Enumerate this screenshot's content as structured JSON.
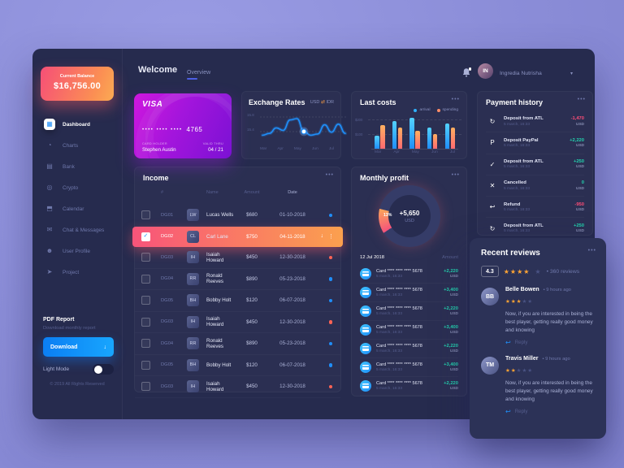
{
  "app": {
    "background": "#8b8dd8",
    "card_bg": "#262b4e",
    "accent_blue": "#1f8ef9",
    "green": "#23d3ae",
    "red": "#ff4d77",
    "orange": "#ffa534"
  },
  "sidebar": {
    "balance": {
      "label": "Current Balance",
      "value": "$16,756.00"
    },
    "items": [
      {
        "label": "Dashboard",
        "glyph": "▦",
        "state": "active"
      },
      {
        "label": "Charts",
        "glyph": "◔"
      },
      {
        "label": "Bank",
        "glyph": "▤"
      },
      {
        "label": "Crypto",
        "glyph": "◎"
      },
      {
        "label": "Calendar",
        "glyph": "⬒"
      },
      {
        "label": "Chat & Messages",
        "glyph": "✉"
      },
      {
        "label": "User Profile",
        "glyph": "☻"
      },
      {
        "label": "Project",
        "glyph": "➤"
      }
    ],
    "pdf": {
      "title": "PDF Report",
      "subtitle": "Download monthly report",
      "button": "Download",
      "button_icon": "↓"
    },
    "light_mode_label": "Light Mode",
    "copyright": "© 2019 All Rights Reserved"
  },
  "header": {
    "title": "Welcome",
    "tab": "Overview",
    "user": "Ingredia Nutrisha",
    "caret": "▾"
  },
  "visa": {
    "brand": "VISA",
    "dots": "••••  ••••  ••••",
    "last4": "4765",
    "holder_label": "CARD HOLDER",
    "holder": "Stephen Austin",
    "valid_label": "VALID THRU",
    "valid": "04 / 21"
  },
  "exchange": {
    "title": "Exchange Rates",
    "pair_left": "USD",
    "swap": "⇄",
    "pair_right": "IDR"
  },
  "costs": {
    "title": "Last costs",
    "menu": "•••"
  },
  "income": {
    "title": "Income",
    "menu": "•••",
    "columns": {
      "id": "#",
      "name": "Name",
      "amount": "Amount",
      "date": "Date"
    },
    "rows": [
      {
        "id": "DG01",
        "name": "Lucas Wells",
        "amount": "$680",
        "date": "01-10-2018",
        "dot": "blue"
      },
      {
        "id": "DG02",
        "name": "Carl Lane",
        "amount": "$750",
        "date": "04-11-2018",
        "state": "selected",
        "checked": true,
        "download_icon": "↓",
        "kebab_icon": "⋮"
      },
      {
        "id": "DG03",
        "name": "Isaiah Howard",
        "amount": "$450",
        "date": "12-30-2018",
        "dot": "orange"
      },
      {
        "id": "DG04",
        "name": "Ronald Reeves",
        "amount": "$890",
        "date": "05-23-2018",
        "dot": "blue"
      },
      {
        "id": "DG05",
        "name": "Bobby Holt",
        "amount": "$120",
        "date": "06-07-2018",
        "dot": "blue"
      },
      {
        "id": "DG03",
        "name": "Isaiah Howard",
        "amount": "$450",
        "date": "12-30-2018",
        "dot": "orange"
      },
      {
        "id": "DG04",
        "name": "Ronald Reeves",
        "amount": "$890",
        "date": "05-23-2018",
        "dot": "blue"
      },
      {
        "id": "DG05",
        "name": "Bobby Holt",
        "amount": "$120",
        "date": "06-07-2018",
        "dot": "blue"
      },
      {
        "id": "DG03",
        "name": "Isaiah Howard",
        "amount": "$450",
        "date": "12-30-2018",
        "dot": "orange"
      }
    ]
  },
  "monthly": {
    "title": "Monthly profit",
    "menu": "•••",
    "date": "12 Jul 2018",
    "amount_label": "Amount",
    "transactions": [
      {
        "title": "Card **** **** **** 5678",
        "time": "5 march, 16:33",
        "amount": "+2,220",
        "currency": "USD",
        "tone": "green"
      },
      {
        "title": "Card **** **** **** 5678",
        "time": "5 march, 16:33",
        "amount": "+3,400",
        "currency": "USD",
        "tone": "green"
      },
      {
        "title": "Card **** **** **** 5678",
        "time": "5 march, 16:33",
        "amount": "+2,220",
        "currency": "USD",
        "tone": "green"
      },
      {
        "title": "Card **** **** **** 5678",
        "time": "5 march, 16:33",
        "amount": "+3,400",
        "currency": "USD",
        "tone": "green"
      },
      {
        "title": "Card **** **** **** 5678",
        "time": "5 march, 16:33",
        "amount": "+2,220",
        "currency": "USD",
        "tone": "green"
      },
      {
        "title": "Card **** **** **** 5678",
        "time": "5 march, 16:33",
        "amount": "+3,400",
        "currency": "USD",
        "tone": "green"
      },
      {
        "title": "Card **** **** **** 5678",
        "time": "5 march, 16:33",
        "amount": "+2,220",
        "currency": "USD",
        "tone": "green"
      }
    ]
  },
  "payments": {
    "title": "Payment history",
    "menu": "•••",
    "items": [
      {
        "icon": "sync-icon",
        "glyph": "↻",
        "style": "ic-blue",
        "title": "Deposit from ATL",
        "time": "5 march, 16:33",
        "amount": "-1,470",
        "currency": "USD",
        "tone": "red"
      },
      {
        "icon": "paypal-icon",
        "glyph": "P",
        "style": "ic-purple",
        "title": "Deposit PayPal",
        "time": "5 march, 16:33",
        "amount": "+2,220",
        "currency": "USD",
        "tone": "green"
      },
      {
        "icon": "check-icon",
        "glyph": "✓",
        "style": "ic-violet",
        "title": "Deposit from ATL",
        "time": "5 march, 16:33",
        "amount": "+250",
        "currency": "USD",
        "tone": "green"
      },
      {
        "icon": "cancel-icon",
        "glyph": "✕",
        "style": "ic-red",
        "title": "Cancelled",
        "time": "5 march, 16:33",
        "amount": "0",
        "currency": "USD",
        "tone": "green"
      },
      {
        "icon": "refund-icon",
        "glyph": "↩",
        "style": "ic-orange",
        "title": "Refund",
        "time": "5 march, 16:33",
        "amount": "-950",
        "currency": "USD",
        "tone": "red"
      },
      {
        "icon": "sync-icon",
        "glyph": "↻",
        "style": "ic-blue",
        "title": "Deposit from ATL",
        "time": "5 march, 16:33",
        "amount": "+250",
        "currency": "USD",
        "tone": "green"
      }
    ]
  },
  "reviews": {
    "title": "Recent reviews",
    "menu": "•••",
    "score": "4.3",
    "score_stars": 4,
    "sep": "•",
    "count": "360 reviews",
    "items": [
      {
        "name": "Belle Bowen",
        "sep": "•",
        "time": "9 hours ago",
        "stars": 3,
        "text": "Now, if you are interested in being the best player, getting really good money and knowing",
        "reply_icon": "↩",
        "reply": "Reply"
      },
      {
        "name": "Travis Miller",
        "sep": "•",
        "time": "9 hours ago",
        "stars": 2,
        "text": "Now, if you are interested in being the best player, getting really good money and knowing",
        "reply_icon": "↩",
        "reply": "Reply"
      }
    ]
  },
  "chart_data": [
    {
      "id": "exchange-rates-line",
      "type": "line",
      "title": "Exchange Rates",
      "pair": "USD/IDR",
      "x_ticks": [
        "Mar",
        "Apr",
        "May",
        "Jun",
        "Jul"
      ],
      "y_ticks": [
        "15.8",
        "15.4"
      ],
      "ylim": [
        15.3,
        15.75
      ],
      "series": [
        {
          "name": "USD/IDR rate",
          "values": [
            15.4,
            15.43,
            15.52,
            15.48,
            15.65,
            15.67,
            15.46,
            15.4,
            15.42,
            15.57,
            15.45,
            15.58,
            15.43
          ]
        }
      ],
      "highlight_index": 6,
      "line_color": "#1f8ef9",
      "grid": "dashed",
      "legend_position": "none"
    },
    {
      "id": "last-costs-bars",
      "type": "bar",
      "title": "Last costs",
      "categories": [
        "Mar",
        "Apr",
        "May",
        "Jun",
        "Jul"
      ],
      "series": [
        {
          "name": "arrival",
          "cls": "blue",
          "color": "#2fb1fa",
          "values": [
            90,
            185,
            210,
            140,
            170
          ]
        },
        {
          "name": "spending",
          "cls": "orange",
          "color": "#ff8d68",
          "values": [
            160,
            140,
            120,
            100,
            140
          ]
        }
      ],
      "y_gridlines": [
        {
          "label": "$200",
          "value": 200
        },
        {
          "label": "$100",
          "value": 100
        }
      ],
      "ylim": [
        0,
        230
      ],
      "legend_position": "top-right"
    },
    {
      "id": "monthly-profit-donut",
      "type": "pie",
      "title": "Monthly profit",
      "slices": [
        {
          "label": "profit",
          "pct": 13,
          "pct_label": "13%",
          "color_start": "#f5537b",
          "color_end": "#fca35a"
        },
        {
          "label": "rest",
          "pct": 87,
          "color": "#353c68"
        }
      ],
      "center_value": "+5,650",
      "center_unit": "USD"
    }
  ]
}
